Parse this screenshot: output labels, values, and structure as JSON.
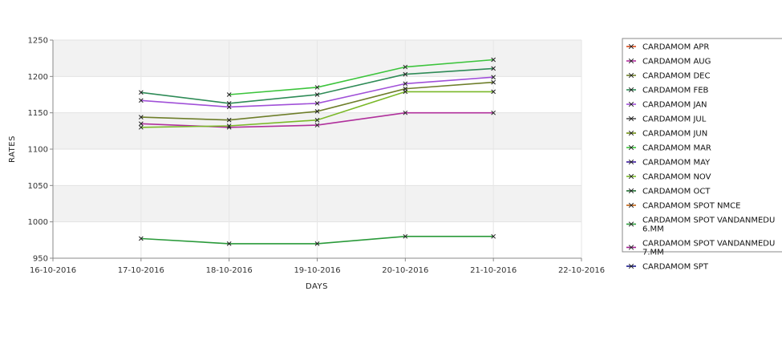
{
  "chart_data": {
    "type": "line",
    "title": "",
    "xlabel": "DAYS",
    "ylabel": "RATES",
    "x_ticks": [
      "16-10-2016",
      "17-10-2016",
      "18-10-2016",
      "19-10-2016",
      "20-10-2016",
      "21-10-2016",
      "22-10-2016"
    ],
    "xlim": [
      "16-10-2016",
      "22-10-2016"
    ],
    "ylim": [
      950,
      1250
    ],
    "y_ticks": [
      950,
      1000,
      1050,
      1100,
      1150,
      1200,
      1250
    ],
    "grid": "horizontal bands",
    "legend_position": "right",
    "series": [
      {
        "name": "CARDAMOM APR",
        "color": "#d94b1a",
        "points": []
      },
      {
        "name": "CARDAMOM AUG",
        "color": "#b0309c",
        "points": [
          {
            "x": "17-10-2016",
            "y": 1135
          },
          {
            "x": "18-10-2016",
            "y": 1130
          },
          {
            "x": "19-10-2016",
            "y": 1133
          },
          {
            "x": "20-10-2016",
            "y": 1150
          },
          {
            "x": "21-10-2016",
            "y": 1150
          }
        ]
      },
      {
        "name": "CARDAMOM DEC",
        "color": "#6e7e2a",
        "points": [
          {
            "x": "17-10-2016",
            "y": 1144
          },
          {
            "x": "18-10-2016",
            "y": 1140
          },
          {
            "x": "19-10-2016",
            "y": 1152
          },
          {
            "x": "20-10-2016",
            "y": 1183
          },
          {
            "x": "21-10-2016",
            "y": 1192
          }
        ]
      },
      {
        "name": "CARDAMOM FEB",
        "color": "#2e8b57",
        "points": [
          {
            "x": "17-10-2016",
            "y": 1178
          },
          {
            "x": "18-10-2016",
            "y": 1163
          },
          {
            "x": "19-10-2016",
            "y": 1175
          },
          {
            "x": "20-10-2016",
            "y": 1203
          },
          {
            "x": "21-10-2016",
            "y": 1211
          }
        ]
      },
      {
        "name": "CARDAMOM JAN",
        "color": "#a050d8",
        "points": [
          {
            "x": "17-10-2016",
            "y": 1167
          },
          {
            "x": "18-10-2016",
            "y": 1158
          },
          {
            "x": "19-10-2016",
            "y": 1163
          },
          {
            "x": "20-10-2016",
            "y": 1190
          },
          {
            "x": "21-10-2016",
            "y": 1199
          }
        ]
      },
      {
        "name": "CARDAMOM JUL",
        "color": "#555555",
        "points": []
      },
      {
        "name": "CARDAMOM JUN",
        "color": "#6e8e10",
        "points": []
      },
      {
        "name": "CARDAMOM MAR",
        "color": "#3cc43c",
        "points": [
          {
            "x": "18-10-2016",
            "y": 1175
          },
          {
            "x": "19-10-2016",
            "y": 1185
          },
          {
            "x": "20-10-2016",
            "y": 1213
          },
          {
            "x": "21-10-2016",
            "y": 1223
          }
        ]
      },
      {
        "name": "CARDAMOM MAY",
        "color": "#3a1a9a",
        "points": []
      },
      {
        "name": "CARDAMOM NOV",
        "color": "#7ab828",
        "points": [
          {
            "x": "17-10-2016",
            "y": 1130
          },
          {
            "x": "18-10-2016",
            "y": 1132
          },
          {
            "x": "19-10-2016",
            "y": 1140
          },
          {
            "x": "20-10-2016",
            "y": 1179
          },
          {
            "x": "21-10-2016",
            "y": 1179
          }
        ]
      },
      {
        "name": "CARDAMOM OCT",
        "color": "#1e6b30",
        "points": []
      },
      {
        "name": "CARDAMOM SPOT NMCE",
        "color": "#c06010",
        "points": []
      },
      {
        "name": "CARDAMOM SPOT VANDANMEDU 6.MM",
        "legend_lines": [
          "CARDAMOM SPOT VANDANMEDU",
          "6.MM"
        ],
        "color": "#2a9a3a",
        "points": [
          {
            "x": "17-10-2016",
            "y": 977
          },
          {
            "x": "18-10-2016",
            "y": 970
          },
          {
            "x": "19-10-2016",
            "y": 970
          },
          {
            "x": "20-10-2016",
            "y": 980
          },
          {
            "x": "21-10-2016",
            "y": 980
          }
        ]
      },
      {
        "name": "CARDAMOM SPOT VANDANMEDU 7.MM",
        "legend_lines": [
          "CARDAMOM SPOT VANDANMEDU",
          "7.MM"
        ],
        "color": "#a02090",
        "points": []
      },
      {
        "name": "CARDAMOM SPT",
        "color": "#1a1a8a",
        "points": []
      }
    ]
  }
}
